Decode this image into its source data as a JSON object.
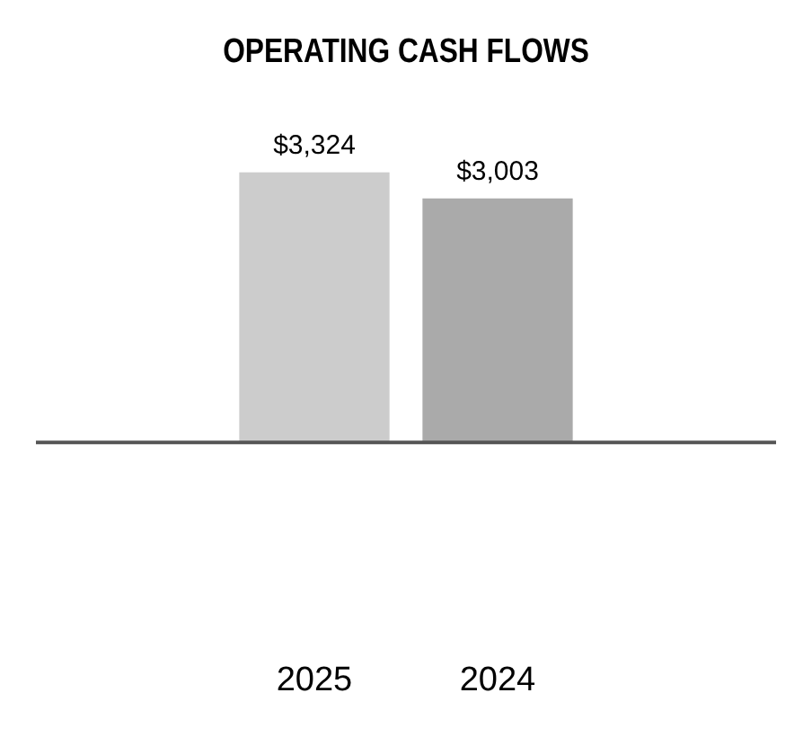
{
  "chart_data": {
    "type": "bar",
    "title": "OPERATING CASH FLOWS",
    "categories": [
      "2025",
      "2024"
    ],
    "values": [
      3324,
      3003
    ],
    "colors": [
      "#cccccc",
      "#aaaaaa"
    ],
    "value_labels": [
      "$3,324",
      "$3,003"
    ],
    "legend": false,
    "grid": false
  }
}
